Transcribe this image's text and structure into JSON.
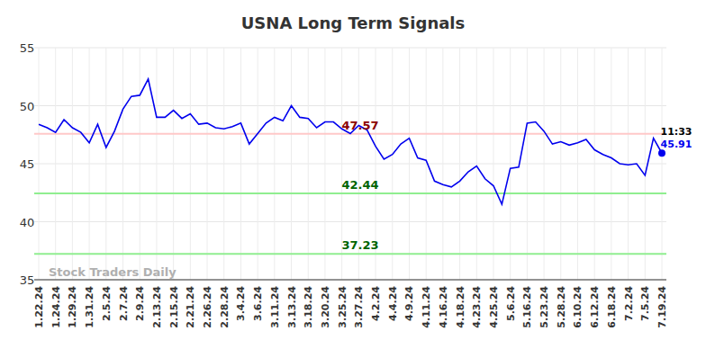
{
  "chart_data": {
    "type": "line",
    "title": "USNA Long Term Signals",
    "watermark": "Stock Traders Daily",
    "categories": [
      "1.22.24",
      null,
      "1.24.24",
      null,
      "1.29.24",
      null,
      "1.31.24",
      null,
      "2.5.24",
      null,
      "2.7.24",
      null,
      "2.9.24",
      null,
      "2.13.24",
      null,
      "2.15.24",
      null,
      "2.21.24",
      null,
      "2.26.24",
      null,
      "2.28.24",
      null,
      "3.4.24",
      null,
      "3.6.24",
      null,
      "3.11.24",
      null,
      "3.13.24",
      null,
      "3.18.24",
      null,
      "3.20.24",
      null,
      "3.25.24",
      null,
      "3.27.24",
      null,
      "4.2.24",
      null,
      "4.4.24",
      null,
      "4.9.24",
      null,
      "4.11.24",
      null,
      "4.16.24",
      null,
      "4.18.24",
      null,
      "4.23.24",
      null,
      "4.25.24",
      null,
      "5.6.24",
      null,
      "5.16.24",
      null,
      "5.23.24",
      null,
      "5.28.24",
      null,
      "6.10.24",
      null,
      "6.12.24",
      null,
      "6.18.24",
      null,
      "7.2.24",
      null,
      "7.5.24",
      null,
      "7.19.24"
    ],
    "series": [
      {
        "name": "USNA",
        "color": "#0000ee",
        "values": [
          48.4,
          48.1,
          47.7,
          48.8,
          48.1,
          47.7,
          46.8,
          48.4,
          46.4,
          47.8,
          49.7,
          50.8,
          50.9,
          52.3,
          49.0,
          49.0,
          49.6,
          48.9,
          49.3,
          48.4,
          48.5,
          48.1,
          48.0,
          48.2,
          48.5,
          46.7,
          47.6,
          48.5,
          49.0,
          48.7,
          50.0,
          49.0,
          48.9,
          48.1,
          48.6,
          48.6,
          48.0,
          47.6,
          48.3,
          47.9,
          46.5,
          45.4,
          45.8,
          46.7,
          47.2,
          45.5,
          45.3,
          43.5,
          43.2,
          43.0,
          43.5,
          44.3,
          44.8,
          43.7,
          43.1,
          41.5,
          44.6,
          44.7,
          48.5,
          48.6,
          47.8,
          46.7,
          46.9,
          46.6,
          46.8,
          47.1,
          46.2,
          45.8,
          45.5,
          45.0,
          44.9,
          45.0,
          44.0,
          47.2,
          45.91
        ]
      }
    ],
    "ylim": [
      35,
      55
    ],
    "yticks": [
      35,
      40,
      45,
      50,
      55
    ],
    "grid": true,
    "levels": [
      {
        "value": 47.57,
        "label": "47.57",
        "color": "#ffc8c8",
        "label_color": "#8b0000"
      },
      {
        "value": 42.44,
        "label": "42.44",
        "color": "#90ee90",
        "label_color": "#006400"
      },
      {
        "value": 37.23,
        "label": "37.23",
        "color": "#90ee90",
        "label_color": "#006400"
      }
    ],
    "last_point": {
      "time": "11:33",
      "label": "45.91"
    }
  }
}
